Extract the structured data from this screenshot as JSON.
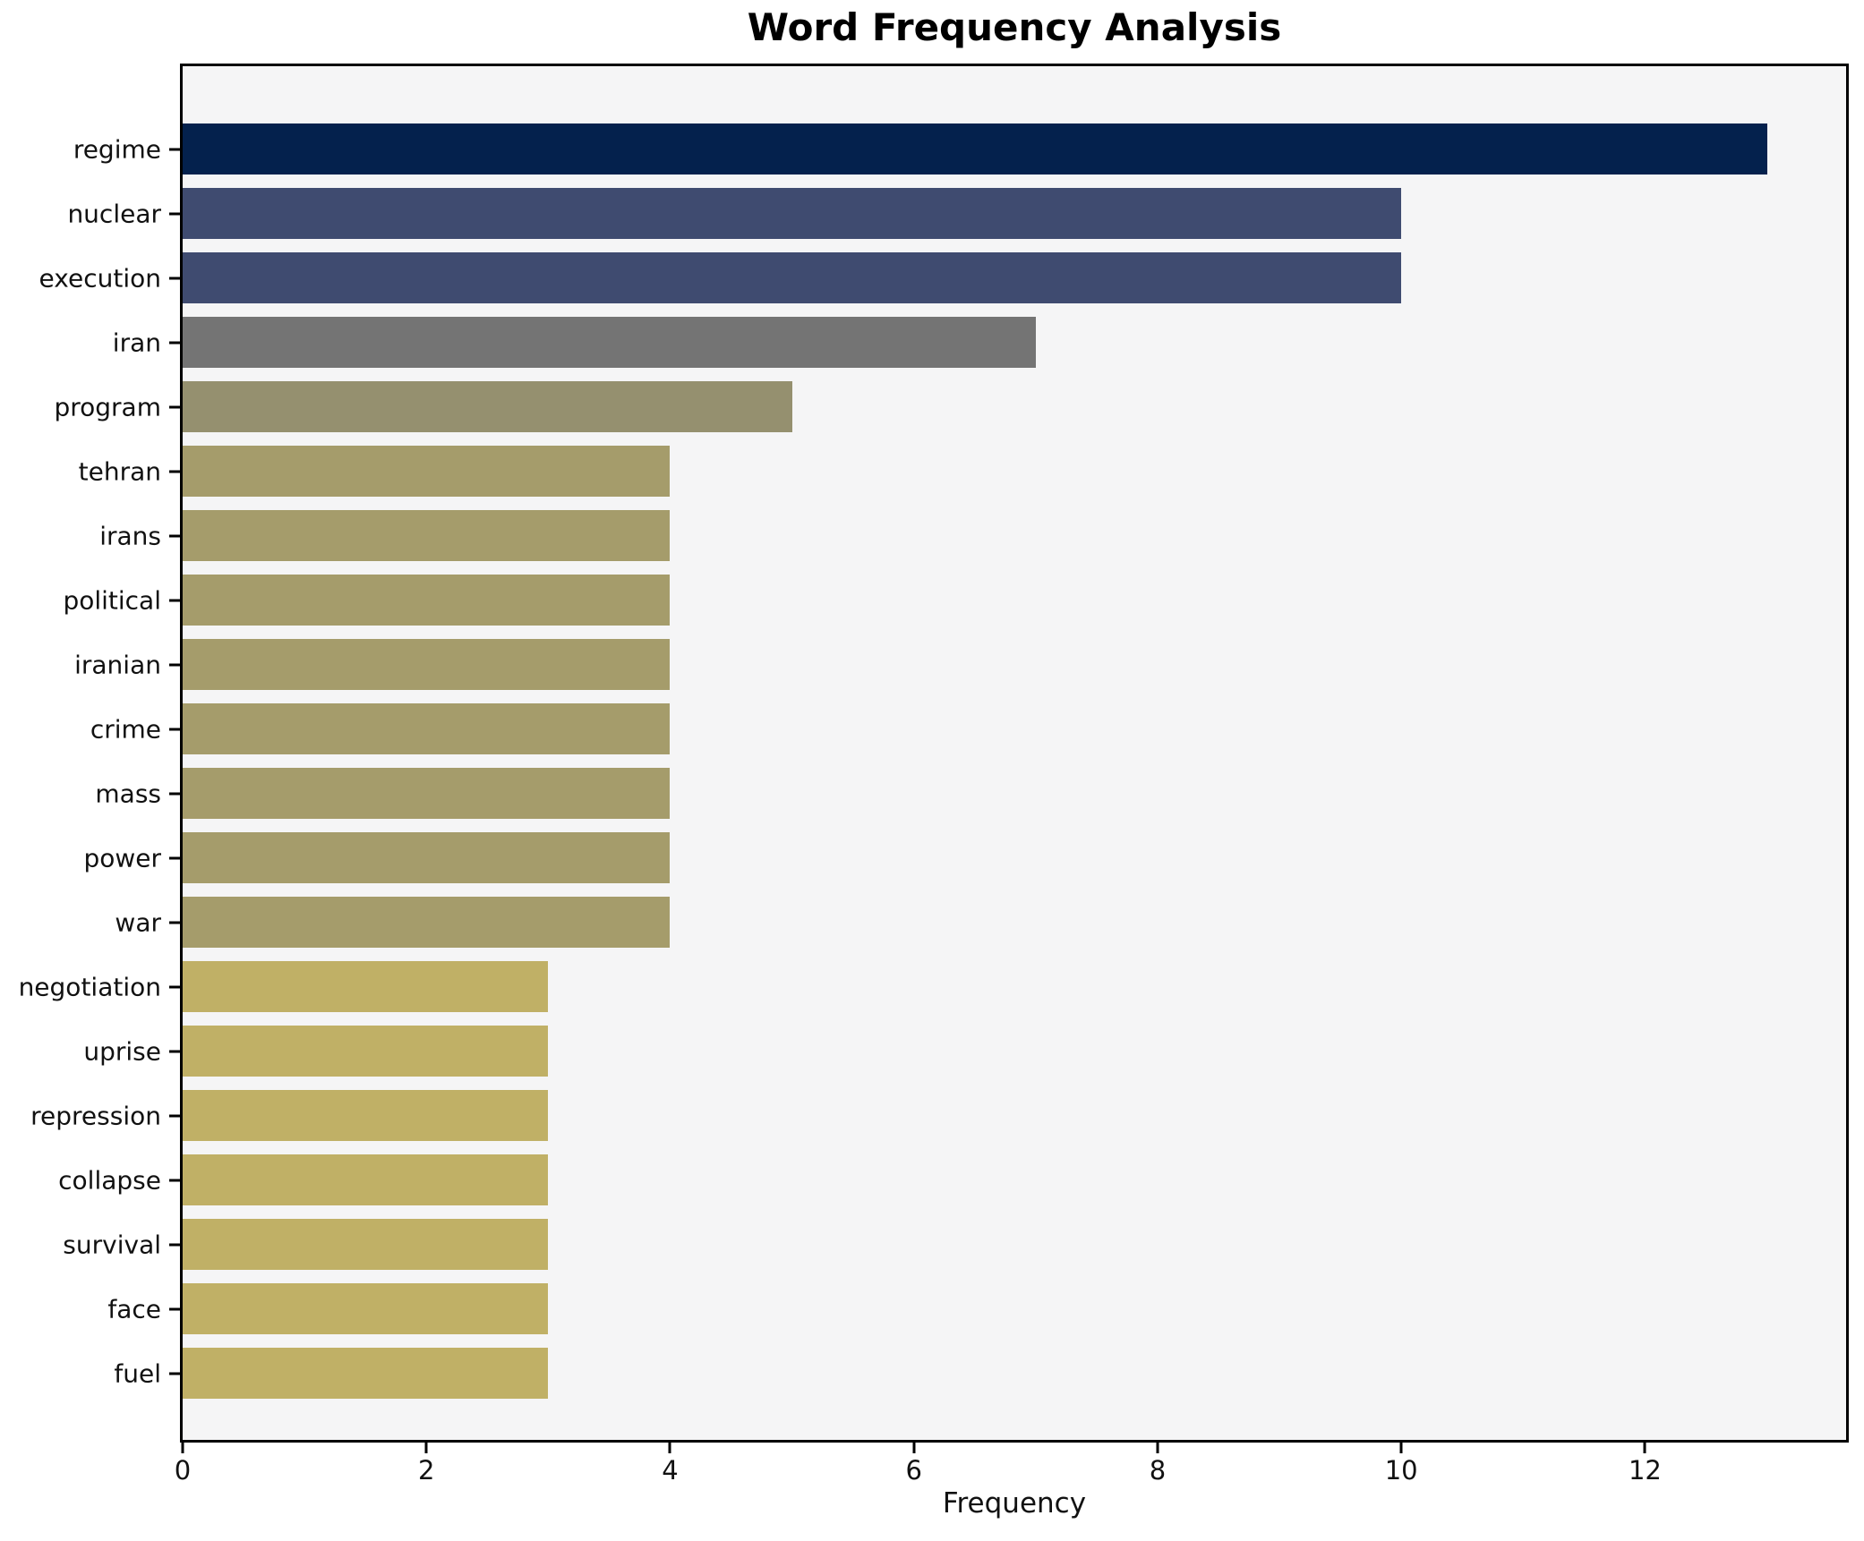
{
  "title": "Word Frequency Analysis",
  "chart_data": {
    "type": "bar",
    "orientation": "horizontal",
    "title": "Word Frequency Analysis",
    "xlabel": "Frequency",
    "ylabel": "",
    "xlim": [
      0,
      13.65
    ],
    "xticks": [
      0,
      2,
      4,
      6,
      8,
      10,
      12
    ],
    "grid": false,
    "legend": false,
    "plot_background": "#f5f5f6",
    "spine_color": "#000000",
    "categories": [
      "regime",
      "nuclear",
      "execution",
      "iran",
      "program",
      "tehran",
      "irans",
      "political",
      "iranian",
      "crime",
      "mass",
      "power",
      "war",
      "negotiation",
      "uprise",
      "repression",
      "collapse",
      "survival",
      "face",
      "fuel"
    ],
    "values": [
      13,
      10,
      10,
      7,
      5,
      4,
      4,
      4,
      4,
      4,
      4,
      4,
      4,
      3,
      3,
      3,
      3,
      3,
      3,
      3
    ],
    "bar_colors": [
      "#04214d",
      "#3f4b70",
      "#3f4b70",
      "#747474",
      "#95906f",
      "#a59c6b",
      "#a59c6b",
      "#a59c6b",
      "#a59c6b",
      "#a59c6b",
      "#a59c6b",
      "#a59c6b",
      "#a59c6b",
      "#c0b066",
      "#c0b066",
      "#c0b066",
      "#c0b066",
      "#c0b066",
      "#c0b066",
      "#c0b066"
    ]
  }
}
